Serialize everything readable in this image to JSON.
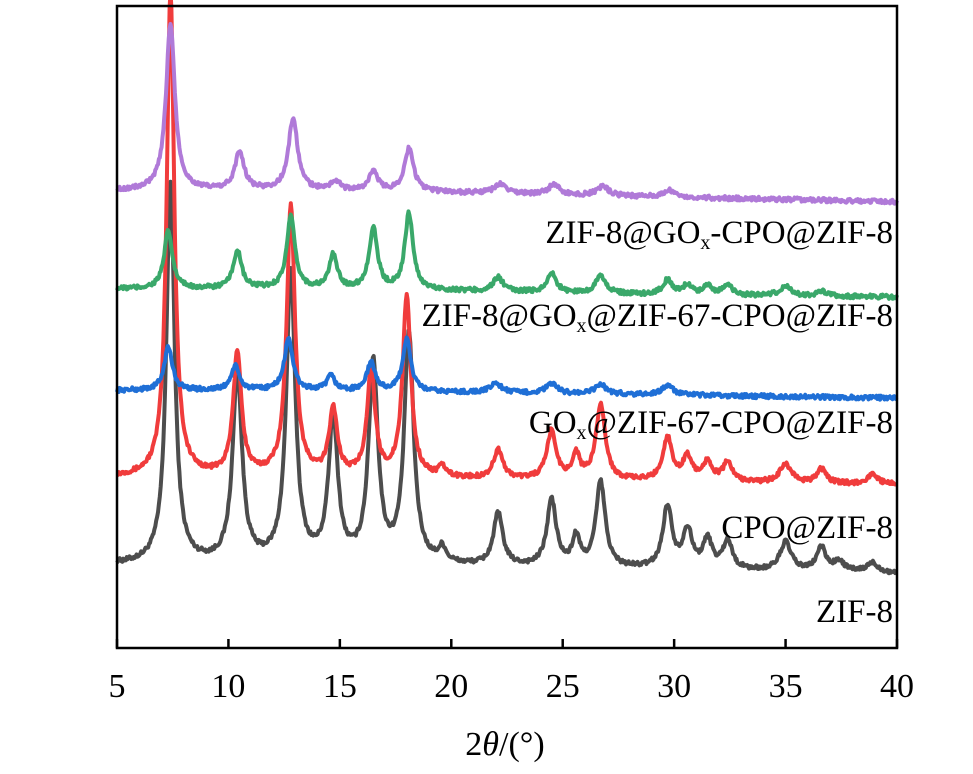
{
  "chart_data": {
    "type": "line",
    "title": "",
    "xlabel_prefix": "2",
    "xlabel_symbol": "θ",
    "xlabel_suffix": "/(°)",
    "ylabel": "",
    "xlim": [
      5,
      40
    ],
    "x_ticks": [
      5,
      10,
      15,
      20,
      25,
      30,
      35,
      40
    ],
    "x_tick_labels": [
      "5",
      "10",
      "15",
      "20",
      "25",
      "30",
      "35",
      "40"
    ],
    "y_axis": "arbitrary intensity, stacked traces with vertical offset, no tick labels",
    "series": [
      {
        "name": "ZIF-8",
        "label_parts": [
          "ZIF-8"
        ],
        "color": "#4d4d4d",
        "offset": 0,
        "baseline": [
          [
            5,
            3.6
          ],
          [
            12,
            3.6
          ],
          [
            20,
            3.2
          ],
          [
            30,
            2.5
          ],
          [
            40,
            1.8
          ]
        ],
        "peaks": [
          [
            7.4,
            80,
            0.22
          ],
          [
            10.4,
            40,
            0.25
          ],
          [
            12.8,
            61,
            0.24
          ],
          [
            14.7,
            30,
            0.25
          ],
          [
            16.5,
            42,
            0.25
          ],
          [
            18.1,
            48,
            0.25
          ],
          [
            19.6,
            3,
            0.2
          ],
          [
            22.1,
            11,
            0.25
          ],
          [
            24.5,
            14,
            0.25
          ],
          [
            25.6,
            6,
            0.2
          ],
          [
            26.7,
            18,
            0.25
          ],
          [
            29.7,
            13,
            0.25
          ],
          [
            30.6,
            8,
            0.25
          ],
          [
            31.5,
            6,
            0.25
          ],
          [
            32.4,
            6,
            0.25
          ],
          [
            35.0,
            6,
            0.3
          ],
          [
            36.6,
            5,
            0.25
          ],
          [
            37.4,
            2,
            0.3
          ],
          [
            38.9,
            2,
            0.3
          ]
        ]
      },
      {
        "name": "CPO@ZIF-8",
        "label_parts": [
          "CPO@ZIF-8"
        ],
        "color": "#f03c3c",
        "offset": 18.6,
        "baseline": [
          [
            5,
            3.4
          ],
          [
            12,
            3.4
          ],
          [
            20,
            3.0
          ],
          [
            30,
            2.4
          ],
          [
            40,
            1.8
          ]
        ],
        "peaks": [
          [
            7.4,
            102,
            0.2
          ],
          [
            10.4,
            26,
            0.22
          ],
          [
            12.8,
            57,
            0.22
          ],
          [
            14.7,
            14,
            0.22
          ],
          [
            16.4,
            22,
            0.22
          ],
          [
            18.0,
            38,
            0.22
          ],
          [
            19.6,
            2,
            0.2
          ],
          [
            22.1,
            6,
            0.25
          ],
          [
            24.5,
            10,
            0.25
          ],
          [
            25.6,
            5,
            0.2
          ],
          [
            26.7,
            16,
            0.25
          ],
          [
            29.7,
            9,
            0.25
          ],
          [
            30.6,
            5,
            0.25
          ],
          [
            31.5,
            4,
            0.25
          ],
          [
            32.4,
            4,
            0.25
          ],
          [
            35.0,
            4,
            0.3
          ],
          [
            36.6,
            3,
            0.25
          ],
          [
            38.9,
            2,
            0.3
          ]
        ]
      },
      {
        "name": "GOx@ZIF-67-CPO@ZIF-8",
        "label_parts": [
          "GO",
          "x",
          "@ZIF-67-CPO@ZIF-8"
        ],
        "color": "#1f6fd6",
        "offset": 38.6,
        "baseline": [
          [
            5,
            1.6
          ],
          [
            12,
            1.6
          ],
          [
            20,
            1.2
          ],
          [
            30,
            0.6
          ],
          [
            40,
            0.0
          ]
        ],
        "peaks": [
          [
            7.3,
            9,
            0.22
          ],
          [
            10.3,
            5,
            0.22
          ],
          [
            12.7,
            11,
            0.22
          ],
          [
            14.6,
            3,
            0.22
          ],
          [
            16.4,
            6,
            0.22
          ],
          [
            18.0,
            11,
            0.22
          ],
          [
            22.0,
            2,
            0.3
          ],
          [
            24.5,
            2,
            0.3
          ],
          [
            26.7,
            2,
            0.3
          ],
          [
            29.7,
            2,
            0.3
          ]
        ]
      },
      {
        "name": "ZIF-8@GOx@ZIF-67-CPO@ZIF-8",
        "label_parts": [
          "ZIF-8@GO",
          "x",
          "@ZIF-67-CPO@ZIF-8"
        ],
        "color": "#3aa86a",
        "offset": 58.3,
        "baseline": [
          [
            5,
            3.2
          ],
          [
            12,
            3.2
          ],
          [
            20,
            2.8
          ],
          [
            30,
            1.9
          ],
          [
            40,
            1.5
          ]
        ],
        "peaks": [
          [
            7.3,
            12,
            0.22
          ],
          [
            10.4,
            8,
            0.22
          ],
          [
            12.8,
            15,
            0.22
          ],
          [
            14.7,
            7,
            0.22
          ],
          [
            16.5,
            13,
            0.22
          ],
          [
            18.1,
            16,
            0.22
          ],
          [
            22.1,
            3,
            0.25
          ],
          [
            24.5,
            4,
            0.25
          ],
          [
            26.7,
            4,
            0.25
          ],
          [
            29.7,
            3,
            0.25
          ],
          [
            30.6,
            2,
            0.25
          ],
          [
            31.5,
            2,
            0.25
          ],
          [
            32.4,
            2,
            0.25
          ],
          [
            35.0,
            2,
            0.3
          ],
          [
            36.6,
            1,
            0.25
          ]
        ]
      },
      {
        "name": "ZIF-8@GOx-CPO@ZIF-8",
        "label_parts": [
          "ZIF-8@GO",
          "x",
          "-CPO@ZIF-8"
        ],
        "color": "#b07ad8",
        "offset": 78.3,
        "baseline": [
          [
            5,
            3.8
          ],
          [
            12,
            3.8
          ],
          [
            20,
            3.4
          ],
          [
            30,
            2.4
          ],
          [
            40,
            1.5
          ]
        ],
        "peaks": [
          [
            7.4,
            35,
            0.24
          ],
          [
            10.5,
            8,
            0.25
          ],
          [
            12.9,
            15,
            0.25
          ],
          [
            14.8,
            2,
            0.25
          ],
          [
            16.5,
            4,
            0.25
          ],
          [
            18.1,
            9,
            0.25
          ],
          [
            22.2,
            2,
            0.3
          ],
          [
            24.6,
            2,
            0.3
          ],
          [
            26.8,
            2,
            0.3
          ],
          [
            29.8,
            1.5,
            0.3
          ]
        ]
      }
    ],
    "ylim": [
      0,
      120
    ]
  }
}
